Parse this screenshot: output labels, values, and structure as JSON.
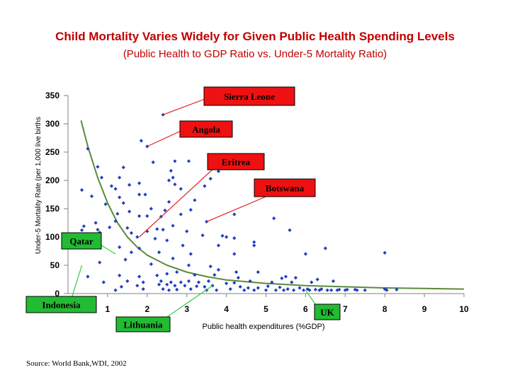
{
  "chart_data": {
    "type": "scatter",
    "title": "Child Mortality Varies Widely for Given Public Health Spending Levels",
    "subtitle": "(Public Health to GDP Ratio vs. Under-5 Mortality Ratio)",
    "xlabel": "Public health expenditures (%GDP)",
    "ylabel": "Under-5 Mortality Rate (per 1,000 live births",
    "xlim": [
      0,
      10
    ],
    "ylim": [
      0,
      350
    ],
    "xticks": [
      1,
      2,
      3,
      4,
      5,
      6,
      7,
      8,
      9,
      10
    ],
    "yticks": [
      0,
      50,
      100,
      150,
      200,
      250,
      300,
      350
    ],
    "marker_color": "#1f3fbf",
    "trend_color": "#5a8a3a",
    "points": [
      [
        2.4,
        316
      ],
      [
        1.85,
        270
      ],
      [
        2.0,
        260
      ],
      [
        0.5,
        256
      ],
      [
        2.15,
        232
      ],
      [
        2.7,
        234
      ],
      [
        3.05,
        234
      ],
      [
        0.75,
        224
      ],
      [
        1.4,
        223
      ],
      [
        2.6,
        217
      ],
      [
        3.8,
        216
      ],
      [
        0.85,
        205
      ],
      [
        1.3,
        205
      ],
      [
        2.65,
        205
      ],
      [
        3.6,
        203
      ],
      [
        2.55,
        200
      ],
      [
        2.7,
        193
      ],
      [
        1.8,
        195
      ],
      [
        1.55,
        192
      ],
      [
        1.1,
        190
      ],
      [
        3.45,
        190
      ],
      [
        2.85,
        185
      ],
      [
        1.2,
        185
      ],
      [
        0.35,
        183
      ],
      [
        1.95,
        175
      ],
      [
        1.8,
        175
      ],
      [
        0.6,
        172
      ],
      [
        1.3,
        170
      ],
      [
        3.2,
        165
      ],
      [
        2.55,
        162
      ],
      [
        1.4,
        160
      ],
      [
        0.95,
        158
      ],
      [
        2.1,
        150
      ],
      [
        2.45,
        147
      ],
      [
        1.55,
        145
      ],
      [
        3.1,
        148
      ],
      [
        1.25,
        141
      ],
      [
        1.8,
        137
      ],
      [
        2.0,
        137
      ],
      [
        2.35,
        136
      ],
      [
        2.85,
        140
      ],
      [
        4.2,
        140
      ],
      [
        5.2,
        133
      ],
      [
        3.5,
        127
      ],
      [
        0.7,
        125
      ],
      [
        1.2,
        128
      ],
      [
        0.4,
        119
      ],
      [
        1.05,
        117
      ],
      [
        1.5,
        116
      ],
      [
        0.75,
        113
      ],
      [
        2.25,
        114
      ],
      [
        2.65,
        120
      ],
      [
        2.4,
        113
      ],
      [
        3.0,
        110
      ],
      [
        1.6,
        107
      ],
      [
        2.0,
        110
      ],
      [
        0.8,
        108
      ],
      [
        3.4,
        103
      ],
      [
        3.9,
        102
      ],
      [
        4.2,
        98
      ],
      [
        1.75,
        100
      ],
      [
        4.0,
        100
      ],
      [
        2.2,
        97
      ],
      [
        4.7,
        91
      ],
      [
        0.7,
        91
      ],
      [
        2.5,
        94
      ],
      [
        4.7,
        85
      ],
      [
        1.3,
        82
      ],
      [
        3.8,
        85
      ],
      [
        2.9,
        85
      ],
      [
        1.8,
        80
      ],
      [
        6.5,
        80
      ],
      [
        8.0,
        72
      ],
      [
        6.0,
        70
      ],
      [
        1.6,
        73
      ],
      [
        3.1,
        70
      ],
      [
        2.3,
        73
      ],
      [
        4.2,
        70
      ],
      [
        0.8,
        55
      ],
      [
        1.45,
        60
      ],
      [
        2.65,
        62
      ],
      [
        2.1,
        52
      ],
      [
        3.05,
        50
      ],
      [
        3.6,
        48
      ],
      [
        3.8,
        42
      ],
      [
        2.75,
        38
      ],
      [
        4.25,
        38
      ],
      [
        4.8,
        38
      ],
      [
        5.5,
        30
      ],
      [
        5.75,
        28
      ],
      [
        1.3,
        32
      ],
      [
        1.8,
        30
      ],
      [
        0.5,
        30
      ],
      [
        2.25,
        32
      ],
      [
        2.5,
        35
      ],
      [
        3.2,
        33
      ],
      [
        3.7,
        33
      ],
      [
        4.3,
        28
      ],
      [
        5.4,
        27
      ],
      [
        6.3,
        25
      ],
      [
        6.7,
        22
      ],
      [
        0.9,
        20
      ],
      [
        1.5,
        22
      ],
      [
        1.9,
        20
      ],
      [
        2.35,
        22
      ],
      [
        2.6,
        20
      ],
      [
        2.85,
        20
      ],
      [
        3.05,
        22
      ],
      [
        3.3,
        20
      ],
      [
        3.55,
        22
      ],
      [
        4.0,
        18
      ],
      [
        4.2,
        19
      ],
      [
        4.6,
        22
      ],
      [
        5.15,
        20
      ],
      [
        5.65,
        20
      ],
      [
        6.15,
        20
      ],
      [
        1.35,
        12
      ],
      [
        1.75,
        14
      ],
      [
        2.3,
        16
      ],
      [
        2.5,
        16
      ],
      [
        2.7,
        14
      ],
      [
        2.95,
        14
      ],
      [
        3.25,
        13
      ],
      [
        3.45,
        12
      ],
      [
        3.65,
        14
      ],
      [
        4.35,
        12
      ],
      [
        4.55,
        10
      ],
      [
        4.8,
        10
      ],
      [
        5.05,
        13
      ],
      [
        5.35,
        11
      ],
      [
        5.55,
        8
      ],
      [
        5.85,
        10
      ],
      [
        6.05,
        8
      ],
      [
        6.25,
        7
      ],
      [
        6.4,
        8
      ],
      [
        6.65,
        6
      ],
      [
        6.85,
        7
      ],
      [
        7.05,
        7
      ],
      [
        7.25,
        7
      ],
      [
        7.5,
        6
      ],
      [
        8.0,
        8
      ],
      [
        8.3,
        7
      ],
      [
        1.9,
        8
      ],
      [
        2.4,
        8
      ],
      [
        2.55,
        6
      ],
      [
        2.75,
        7
      ],
      [
        3.1,
        8
      ],
      [
        3.5,
        6
      ],
      [
        3.75,
        6
      ],
      [
        4.1,
        8
      ],
      [
        4.45,
        6
      ],
      [
        4.7,
        6
      ],
      [
        5.0,
        6
      ],
      [
        5.25,
        6
      ],
      [
        5.45,
        6
      ],
      [
        5.7,
        6
      ],
      [
        5.95,
        6
      ],
      [
        6.1,
        6
      ],
      [
        6.35,
        6
      ],
      [
        6.55,
        6
      ],
      [
        6.8,
        6
      ],
      [
        7.0,
        6
      ],
      [
        7.3,
        6
      ],
      [
        8.05,
        6
      ],
      [
        1.2,
        6
      ],
      [
        0.35,
        112
      ],
      [
        5.6,
        112
      ]
    ],
    "trend": [
      [
        0.33,
        306
      ],
      [
        0.5,
        260
      ],
      [
        0.75,
        205
      ],
      [
        1.0,
        160
      ],
      [
        1.25,
        125
      ],
      [
        1.5,
        100
      ],
      [
        1.75,
        82
      ],
      [
        2.0,
        68
      ],
      [
        2.5,
        50
      ],
      [
        3.0,
        38
      ],
      [
        3.5,
        30
      ],
      [
        4.0,
        24
      ],
      [
        5.0,
        18
      ],
      [
        6.0,
        14
      ],
      [
        7.0,
        12
      ],
      [
        8.0,
        10
      ],
      [
        9.0,
        9
      ],
      [
        10.0,
        8
      ]
    ],
    "annotations": [
      {
        "label": "Sierra Leone",
        "target": [
          2.4,
          316
        ]
      },
      {
        "label": "Angola",
        "target": [
          2.0,
          260
        ]
      },
      {
        "label": "Eritrea",
        "target": [
          1.8,
          100
        ]
      },
      {
        "label": "Botswana",
        "target": [
          3.5,
          127
        ]
      },
      {
        "label": "Qatar",
        "target": [
          1.2,
          70
        ]
      },
      {
        "label": "Indonesia",
        "target": [
          0.35,
          50
        ]
      },
      {
        "label": "Lithuania",
        "target": [
          3.65,
          14
        ]
      },
      {
        "label": "UK",
        "target": [
          6.0,
          6
        ]
      }
    ]
  },
  "source": "Source: World Bank,WDI, 2002"
}
